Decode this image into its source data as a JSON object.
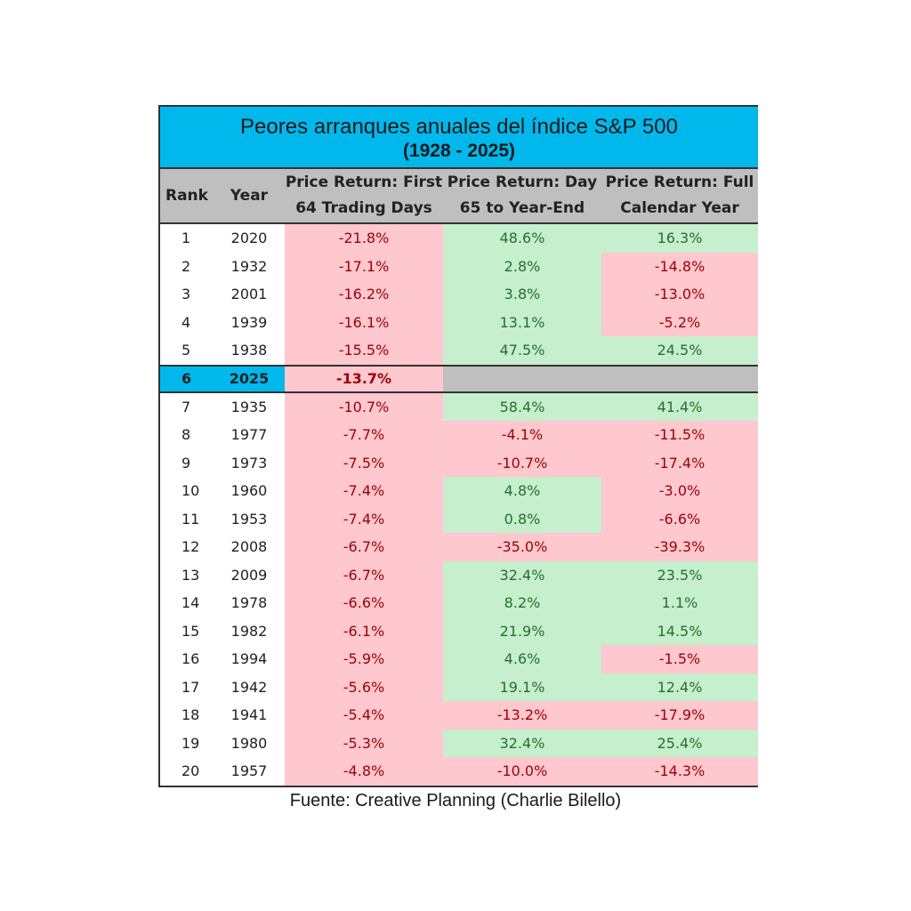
{
  "title": "Peores arranques anuales del índice S&P 500",
  "subtitle": "(1928 - 2025)",
  "headers": {
    "rank": "Rank",
    "year": "Year",
    "first_line1": "Price Return: First",
    "first_line2": "64 Trading Days",
    "day_line1": "Price Return: Day",
    "day_line2": "65 to Year-End",
    "full_line1": "Price Return: Full",
    "full_line2": "Calendar  Year"
  },
  "colors": {
    "title_bg": "#00b8ec",
    "header_bg": "#bfbfbf",
    "positive_bg": "#c6efce",
    "positive_text": "#23702b",
    "negative_bg": "#ffc7ce",
    "negative_text": "#9c0006"
  },
  "chart_data": {
    "type": "table",
    "title": "Peores arranques anuales del índice S&P 500",
    "columns": [
      "Rank",
      "Year",
      "Price Return: First 64 Trading Days",
      "Price Return: Day 65 to Year-End",
      "Price Return: Full Calendar Year"
    ],
    "rows": [
      {
        "rank": "1",
        "year": "2020",
        "first": "-21.8%",
        "day": "48.6%",
        "full": "16.3%"
      },
      {
        "rank": "2",
        "year": "1932",
        "first": "-17.1%",
        "day": "2.8%",
        "full": "-14.8%"
      },
      {
        "rank": "3",
        "year": "2001",
        "first": "-16.2%",
        "day": "3.8%",
        "full": "-13.0%"
      },
      {
        "rank": "4",
        "year": "1939",
        "first": "-16.1%",
        "day": "13.1%",
        "full": "-5.2%"
      },
      {
        "rank": "5",
        "year": "1938",
        "first": "-15.5%",
        "day": "47.5%",
        "full": "24.5%"
      },
      {
        "rank": "6",
        "year": "2025",
        "first": "-13.7%",
        "day": "",
        "full": "",
        "highlight": true
      },
      {
        "rank": "7",
        "year": "1935",
        "first": "-10.7%",
        "day": "58.4%",
        "full": "41.4%"
      },
      {
        "rank": "8",
        "year": "1977",
        "first": "-7.7%",
        "day": "-4.1%",
        "full": "-11.5%"
      },
      {
        "rank": "9",
        "year": "1973",
        "first": "-7.5%",
        "day": "-10.7%",
        "full": "-17.4%"
      },
      {
        "rank": "10",
        "year": "1960",
        "first": "-7.4%",
        "day": "4.8%",
        "full": "-3.0%"
      },
      {
        "rank": "11",
        "year": "1953",
        "first": "-7.4%",
        "day": "0.8%",
        "full": "-6.6%"
      },
      {
        "rank": "12",
        "year": "2008",
        "first": "-6.7%",
        "day": "-35.0%",
        "full": "-39.3%"
      },
      {
        "rank": "13",
        "year": "2009",
        "first": "-6.7%",
        "day": "32.4%",
        "full": "23.5%"
      },
      {
        "rank": "14",
        "year": "1978",
        "first": "-6.6%",
        "day": "8.2%",
        "full": "1.1%"
      },
      {
        "rank": "15",
        "year": "1982",
        "first": "-6.1%",
        "day": "21.9%",
        "full": "14.5%"
      },
      {
        "rank": "16",
        "year": "1994",
        "first": "-5.9%",
        "day": "4.6%",
        "full": "-1.5%"
      },
      {
        "rank": "17",
        "year": "1942",
        "first": "-5.6%",
        "day": "19.1%",
        "full": "12.4%"
      },
      {
        "rank": "18",
        "year": "1941",
        "first": "-5.4%",
        "day": "-13.2%",
        "full": "-17.9%"
      },
      {
        "rank": "19",
        "year": "1980",
        "first": "-5.3%",
        "day": "32.4%",
        "full": "25.4%"
      },
      {
        "rank": "20",
        "year": "1957",
        "first": "-4.8%",
        "day": "-10.0%",
        "full": "-14.3%"
      }
    ]
  },
  "source": "Fuente: Creative Planning (Charlie Bilello)"
}
